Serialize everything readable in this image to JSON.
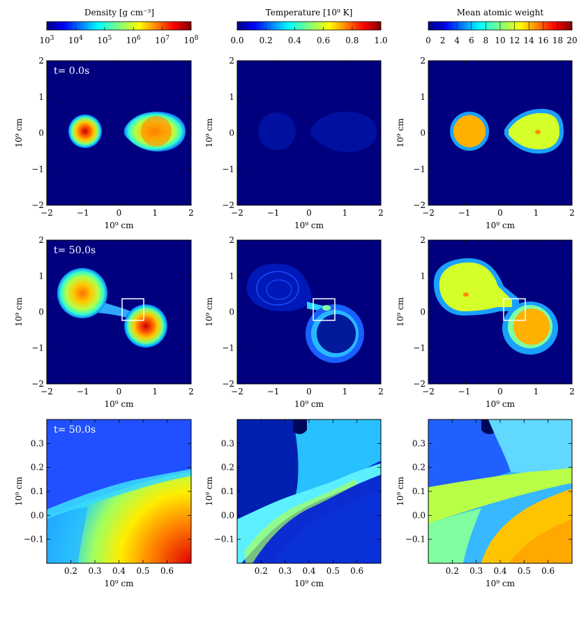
{
  "figure": {
    "colorbars": [
      {
        "title": "Density [g cm⁻³]",
        "colormap": "jet",
        "scale": "log",
        "ticks": [
          {
            "base": "10",
            "exp": "3"
          },
          {
            "base": "10",
            "exp": "4"
          },
          {
            "base": "10",
            "exp": "5"
          },
          {
            "base": "10",
            "exp": "6"
          },
          {
            "base": "10",
            "exp": "7"
          },
          {
            "base": "10",
            "exp": "8"
          }
        ]
      },
      {
        "title": "Temperature [10⁹ K]",
        "colormap": "jet",
        "scale": "linear",
        "ticks": [
          "0.0",
          "0.2",
          "0.4",
          "0.6",
          "0.8",
          "1.0"
        ]
      },
      {
        "title": "Mean atomic weight",
        "colormap": "jet",
        "scale": "linear",
        "discrete": true,
        "ticks": [
          "0",
          "2",
          "4",
          "6",
          "8",
          "10",
          "12",
          "14",
          "16",
          "18",
          "20"
        ]
      }
    ],
    "time_labels": [
      "t= 0.0s",
      "t= 50.0s",
      "t= 50.0s"
    ],
    "xlabel": "10⁹ cm",
    "ylabel": "10⁹ cm",
    "rows": [
      {
        "xticks": [
          "−2",
          "−1",
          "0",
          "1",
          "2"
        ],
        "yticks": [
          "2",
          "1",
          "0",
          "−1",
          "−2"
        ]
      },
      {
        "xticks": [
          "−2",
          "−1",
          "0",
          "1",
          "2"
        ],
        "yticks": [
          "2",
          "1",
          "0",
          "−1",
          "−2"
        ]
      },
      {
        "xticks": [
          "0.2",
          "0.3",
          "0.4",
          "0.5",
          "0.6"
        ],
        "yticks": [
          "0.3",
          "0.2",
          "0.1",
          "0.0",
          "−0.1"
        ]
      }
    ]
  },
  "chart_data": [
    {
      "type": "heatmap",
      "quantity": "density",
      "time": "0.0s",
      "xlim": [
        -2,
        2
      ],
      "ylim": [
        -2,
        2
      ],
      "features": {
        "stars": [
          {
            "x": -0.95,
            "y": 0.0,
            "radius": 0.45,
            "peak": "10^8"
          },
          {
            "x": 1.05,
            "y": 0.0,
            "radius": 0.6,
            "peak": "10^7"
          }
        ],
        "background": "10^3"
      }
    },
    {
      "type": "heatmap",
      "quantity": "temperature",
      "time": "0.0s",
      "xlim": [
        -2,
        2
      ],
      "ylim": [
        -2,
        2
      ],
      "features": {
        "stars": [
          {
            "x": -0.95,
            "y": 0.0
          },
          {
            "x": 1.05,
            "y": 0.0
          }
        ],
        "value": "~0.05"
      }
    },
    {
      "type": "heatmap",
      "quantity": "mean_atomic_weight",
      "time": "0.0s",
      "xlim": [
        -2,
        2
      ],
      "ylim": [
        -2,
        2
      ],
      "features": {
        "stars": [
          {
            "x": -0.95,
            "y": 0.0,
            "value": 16
          },
          {
            "x": 1.05,
            "y": 0.0,
            "value": 13
          }
        ]
      }
    },
    {
      "type": "heatmap",
      "quantity": "density",
      "time": "50.0s",
      "xlim": [
        -2,
        2
      ],
      "ylim": [
        -2,
        2
      ],
      "features": {
        "stars": [
          {
            "x": -1.0,
            "y": 0.5,
            "peak": "10^7"
          },
          {
            "x": 0.7,
            "y": -0.35,
            "peak": "10^8"
          }
        ],
        "zoom_box": {
          "x": [
            0.1,
            0.7
          ],
          "y": [
            -0.2,
            0.4
          ]
        }
      }
    },
    {
      "type": "heatmap",
      "quantity": "temperature",
      "time": "50.0s",
      "xlim": [
        -2,
        2
      ],
      "ylim": [
        -2,
        2
      ],
      "features": {
        "zoom_box": {
          "x": [
            0.1,
            0.7
          ],
          "y": [
            -0.2,
            0.4
          ]
        },
        "value": "0.05–0.5"
      }
    },
    {
      "type": "heatmap",
      "quantity": "mean_atomic_weight",
      "time": "50.0s",
      "xlim": [
        -2,
        2
      ],
      "ylim": [
        -2,
        2
      ],
      "features": {
        "stars": [
          {
            "x": -1.0,
            "y": 0.5,
            "value": 13
          },
          {
            "x": 0.7,
            "y": -0.35,
            "value": 16
          }
        ],
        "zoom_box": {
          "x": [
            0.1,
            0.7
          ],
          "y": [
            -0.2,
            0.4
          ]
        }
      }
    },
    {
      "type": "heatmap",
      "quantity": "density",
      "time": "50.0s",
      "xlim": [
        0.1,
        0.7
      ],
      "ylim": [
        -0.2,
        0.4
      ]
    },
    {
      "type": "heatmap",
      "quantity": "temperature",
      "time": "50.0s",
      "xlim": [
        0.1,
        0.7
      ],
      "ylim": [
        -0.2,
        0.4
      ]
    },
    {
      "type": "heatmap",
      "quantity": "mean_atomic_weight",
      "time": "50.0s",
      "xlim": [
        0.1,
        0.7
      ],
      "ylim": [
        -0.2,
        0.4
      ]
    }
  ]
}
